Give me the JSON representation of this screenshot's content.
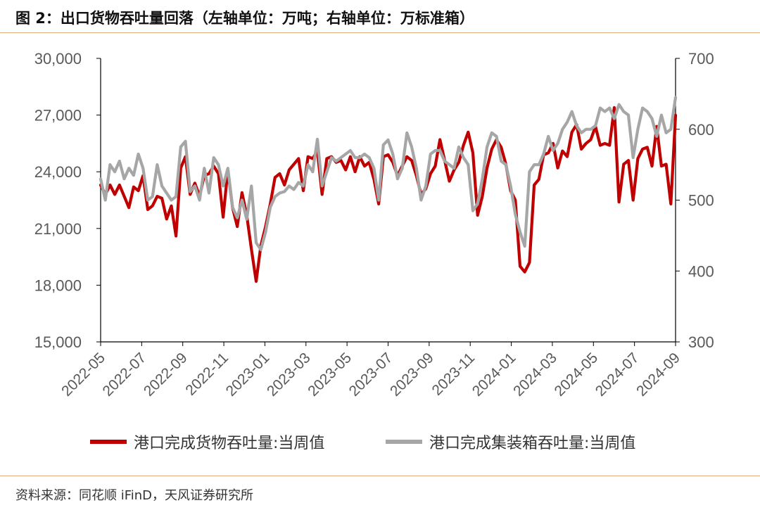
{
  "title": "图 2：出口货物吞吐量回落（左轴单位：万吨；右轴单位：万标准箱）",
  "source": "资料来源：同花顺 iFinD，天风证券研究所",
  "colors": {
    "series1": "#c00000",
    "series2": "#a6a6a6",
    "accent_rule": "#e3ad7e",
    "axis": "#000000",
    "tick_text": "#595959"
  },
  "chart_data": {
    "type": "line",
    "x_start_week": "2022-05-01",
    "x_tick_labels": [
      "2022-05",
      "2022-07",
      "2022-09",
      "2022-11",
      "2023-01",
      "2023-03",
      "2023-05",
      "2023-07",
      "2023-09",
      "2023-11",
      "2024-01",
      "2024-03",
      "2024-05",
      "2024-07",
      "2024-09"
    ],
    "left_axis": {
      "ylim": [
        15000,
        30000
      ],
      "ticks": [
        "15,000",
        "18,000",
        "21,000",
        "24,000",
        "27,000",
        "30,000"
      ]
    },
    "right_axis": {
      "ylim": [
        300,
        700
      ],
      "ticks": [
        "300",
        "400",
        "500",
        "600",
        "700"
      ]
    },
    "grid": false,
    "legend_position": "bottom",
    "series": [
      {
        "name": "港口完成货物吞吐量:当周值",
        "axis": "left",
        "values": [
          23300,
          22800,
          23300,
          22800,
          23300,
          22700,
          22100,
          23200,
          23000,
          23800,
          22000,
          22200,
          22700,
          22600,
          21500,
          22200,
          20600,
          24200,
          24800,
          22800,
          23400,
          22700,
          23800,
          23900,
          24300,
          23900,
          21600,
          24100,
          22100,
          21100,
          22900,
          21700,
          19900,
          18200,
          20100,
          21100,
          22300,
          23700,
          23900,
          23300,
          24100,
          24400,
          24700,
          23000,
          24800,
          24700,
          25100,
          22800,
          24700,
          24800,
          24500,
          24600,
          24100,
          24800,
          24000,
          24800,
          24300,
          24500,
          23600,
          22300,
          24800,
          24900,
          24500,
          23800,
          24300,
          24800,
          24600,
          23800,
          22800,
          23100,
          23900,
          24300,
          25700,
          24600,
          23500,
          24100,
          24500,
          25400,
          26100,
          25000,
          21700,
          22700,
          24200,
          25200,
          25700,
          25300,
          24400,
          23000,
          22500,
          19000,
          18700,
          19200,
          23300,
          23600,
          24900,
          25000,
          25500,
          24200,
          25100,
          24800,
          26100,
          26500,
          25200,
          25500,
          25700,
          26400,
          25400,
          25500,
          25400,
          27400,
          22400,
          24400,
          24600,
          22500,
          24700,
          25200,
          25300,
          24300,
          26400,
          24300,
          24400,
          22300,
          27000
        ]
      },
      {
        "name": "港口完成集装箱吞吐量:当周值",
        "axis": "right",
        "values": [
          530,
          500,
          550,
          540,
          555,
          530,
          545,
          535,
          565,
          545,
          500,
          505,
          550,
          520,
          510,
          500,
          505,
          575,
          583,
          512,
          520,
          500,
          545,
          510,
          560,
          550,
          520,
          545,
          490,
          475,
          500,
          473,
          520,
          440,
          430,
          455,
          490,
          505,
          510,
          512,
          520,
          515,
          525,
          520,
          550,
          540,
          586,
          520,
          540,
          560,
          555,
          560,
          565,
          570,
          560,
          560,
          565,
          560,
          545,
          500,
          578,
          585,
          565,
          530,
          545,
          595,
          575,
          545,
          500,
          520,
          565,
          570,
          570,
          555,
          550,
          545,
          575,
          560,
          550,
          485,
          495,
          530,
          575,
          595,
          590,
          555,
          550,
          520,
          480,
          455,
          435,
          540,
          550,
          550,
          565,
          590,
          570,
          580,
          600,
          610,
          625,
          605,
          595,
          600,
          600,
          605,
          630,
          625,
          630,
          615,
          635,
          625,
          620,
          560,
          600,
          630,
          625,
          615,
          590,
          620,
          595,
          600,
          645
        ]
      }
    ]
  }
}
